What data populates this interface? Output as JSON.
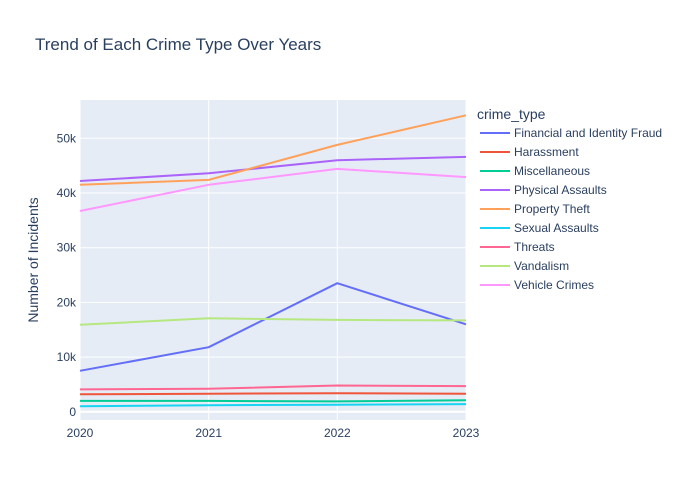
{
  "chart_data": {
    "type": "line",
    "title": "Trend of Each Crime Type Over Years",
    "xlabel": "",
    "ylabel": "Number of Incidents",
    "legend_title": "crime_type",
    "legend_position": "right",
    "grid": true,
    "x": [
      2020,
      2021,
      2022,
      2023
    ],
    "x_tick_labels": [
      "2020",
      "2021",
      "2022",
      "2023"
    ],
    "y_ticks": [
      0,
      10000,
      20000,
      30000,
      40000,
      50000
    ],
    "y_tick_labels": [
      "0",
      "10k",
      "20k",
      "30k",
      "40k",
      "50k"
    ],
    "ylim": [
      -1500,
      57000
    ],
    "colors": {
      "plot_background": "#E5ECF6",
      "grid": "#FFFFFF",
      "text": "#2a3f5f"
    },
    "series": [
      {
        "name": "Financial and Identity Fraud",
        "color": "#636efa",
        "values": [
          7500,
          11800,
          23500,
          16000
        ]
      },
      {
        "name": "Harassment",
        "color": "#EF553B",
        "values": [
          3200,
          3300,
          3400,
          3300
        ]
      },
      {
        "name": "Miscellaneous",
        "color": "#00cc96",
        "values": [
          2000,
          2000,
          1900,
          2100
        ]
      },
      {
        "name": "Physical Assaults",
        "color": "#ab63fa",
        "values": [
          42200,
          43600,
          46000,
          46600
        ]
      },
      {
        "name": "Property Theft",
        "color": "#FFA15A",
        "values": [
          41500,
          42400,
          48800,
          54200
        ]
      },
      {
        "name": "Sexual Assaults",
        "color": "#19d3f3",
        "values": [
          1000,
          1200,
          1300,
          1400
        ]
      },
      {
        "name": "Threats",
        "color": "#FF6692",
        "values": [
          4100,
          4200,
          4800,
          4700
        ]
      },
      {
        "name": "Vandalism",
        "color": "#B6E880",
        "values": [
          15900,
          17100,
          16800,
          16700
        ]
      },
      {
        "name": "Vehicle Crimes",
        "color": "#FF97FF",
        "values": [
          36700,
          41500,
          44400,
          42900
        ]
      }
    ]
  }
}
